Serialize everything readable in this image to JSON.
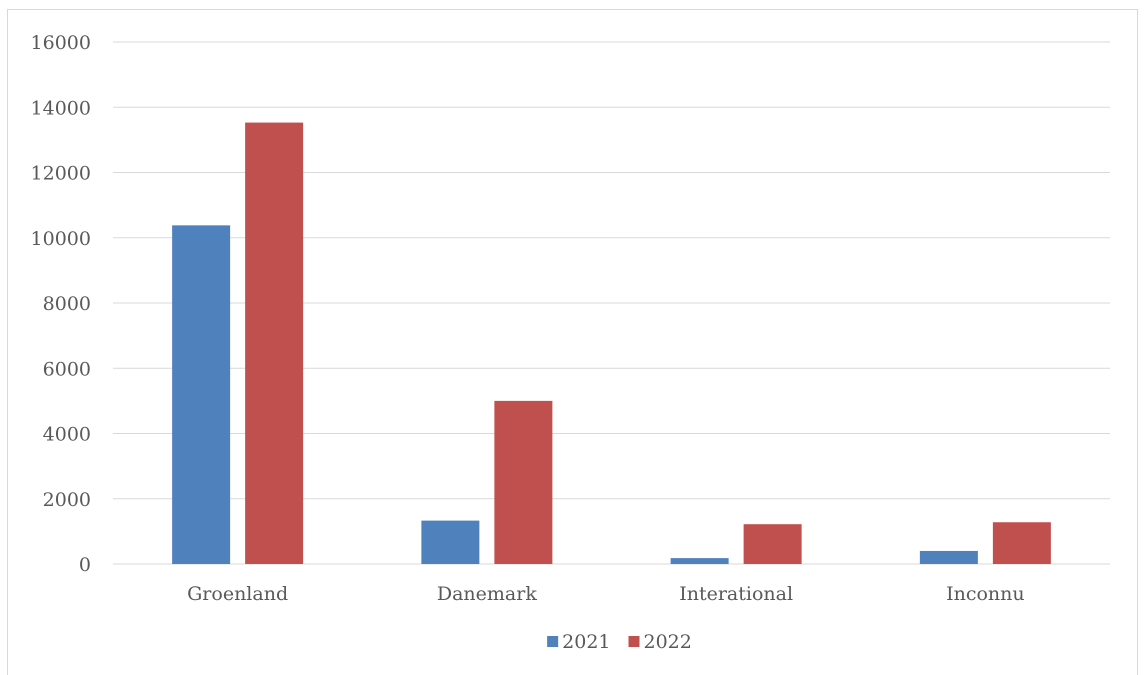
{
  "chart_data": {
    "type": "bar",
    "categories": [
      "Groenland",
      "Danemark",
      "Interational",
      "Inconnu"
    ],
    "series": [
      {
        "name": "2021",
        "values": [
          10380,
          1330,
          180,
          400
        ],
        "color": "#4f81bd"
      },
      {
        "name": "2022",
        "values": [
          13530,
          5000,
          1220,
          1280
        ],
        "color": "#c0504d"
      }
    ],
    "title": "",
    "xlabel": "",
    "ylabel": "",
    "ylim": [
      0,
      16000
    ],
    "yticks": [
      0,
      2000,
      4000,
      6000,
      8000,
      10000,
      12000,
      14000,
      16000
    ],
    "grid": true,
    "legend": "bottom-center",
    "gridline_color": "#d9d9d9"
  }
}
